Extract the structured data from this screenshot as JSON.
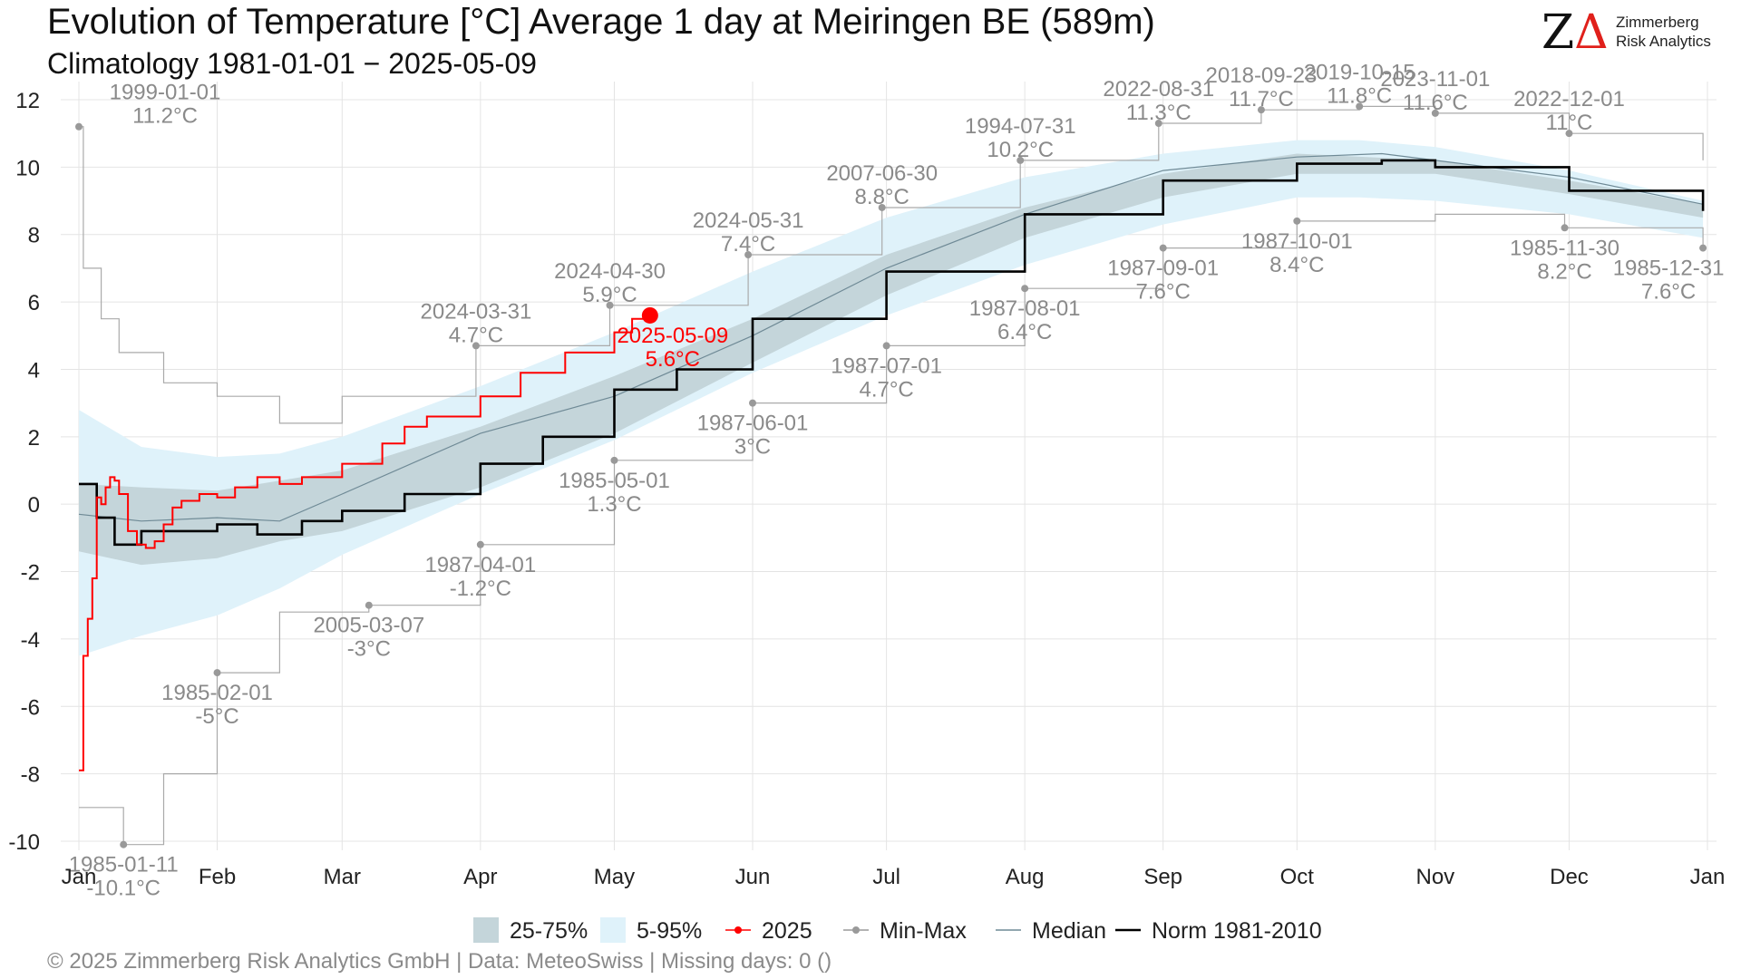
{
  "title": "Evolution of Temperature [°C] Average 1 day at Meiringen  BE (589m)",
  "subtitle": "Climatology 1981-01-01 − 2025-05-09",
  "logo": {
    "name": "Zimmerberg\nRisk Analytics",
    "icon": "z-delta-logo-icon"
  },
  "footer": "©  2025 Zimmerberg Risk Analytics GmbH | Data: MeteoSwiss | Missing days: 0 ()",
  "colors": {
    "iqr": "#c4d5da",
    "p5_95": "#dff2fa",
    "current": "#ff0000",
    "minmax": "#9a9a9a",
    "median": "#6f8a96",
    "norm": "#000000",
    "grid": "#e4e4e4"
  },
  "chart_data": {
    "type": "line",
    "xlabel": "",
    "ylabel": "",
    "ylim": [
      -10,
      12
    ],
    "yticks": [
      "-10",
      "-8",
      "-6",
      "-4",
      "-2",
      "0",
      "2",
      "4",
      "6",
      "8",
      "10",
      "12"
    ],
    "months": [
      "Jan",
      "Feb",
      "Mar",
      "Apr",
      "May",
      "Jun",
      "Jul",
      "Aug",
      "Sep",
      "Oct",
      "Nov",
      "Dec",
      "Jan"
    ],
    "grid": true,
    "legend_position": "bottom",
    "legend": [
      {
        "key": "iqr",
        "label": "25-75%",
        "kind": "box"
      },
      {
        "key": "p5_95",
        "label": "5-95%",
        "kind": "box"
      },
      {
        "key": "current",
        "label": "2025",
        "kind": "line-dot"
      },
      {
        "key": "minmax",
        "label": "Min-Max",
        "kind": "line-dot"
      },
      {
        "key": "median",
        "label": "Median",
        "kind": "line"
      },
      {
        "key": "norm",
        "label": "Norm 1981-2010",
        "kind": "line"
      }
    ],
    "series": [
      {
        "name": "Min-Max",
        "key": "max",
        "x": [
          "01-01",
          "01-02",
          "01-06",
          "01-10",
          "01-20",
          "02-01",
          "02-15",
          "03-01",
          "03-31",
          "04-30",
          "05-31",
          "06-30",
          "07-31",
          "08-31",
          "09-23",
          "10-15",
          "11-01",
          "12-01",
          "12-31"
        ],
        "y": [
          11.2,
          7.0,
          5.5,
          4.5,
          3.6,
          3.2,
          2.4,
          3.2,
          4.7,
          5.9,
          7.4,
          8.8,
          10.2,
          11.3,
          11.7,
          11.8,
          11.6,
          11.0,
          10.2
        ]
      },
      {
        "name": "Min-Max",
        "key": "min",
        "x": [
          "01-01",
          "01-05",
          "01-11",
          "01-20",
          "02-01",
          "02-15",
          "03-07",
          "04-01",
          "05-01",
          "06-01",
          "07-01",
          "08-01",
          "09-01",
          "10-01",
          "11-01",
          "11-30",
          "12-31"
        ],
        "y": [
          -9.0,
          -9.0,
          -10.1,
          -8.0,
          -5.0,
          -3.2,
          -3.0,
          -1.2,
          1.3,
          3.0,
          4.7,
          6.4,
          7.6,
          8.4,
          8.6,
          8.2,
          7.6
        ]
      },
      {
        "name": "5-95%",
        "key": "p95",
        "x": [
          "01-01",
          "01-15",
          "02-01",
          "02-15",
          "03-01",
          "04-01",
          "05-01",
          "06-01",
          "07-01",
          "08-01",
          "09-01",
          "10-01",
          "10-15",
          "11-01",
          "12-01",
          "12-31"
        ],
        "y": [
          2.8,
          1.7,
          1.4,
          1.5,
          2.0,
          3.5,
          5.1,
          6.9,
          8.5,
          9.7,
          10.4,
          10.8,
          10.8,
          10.6,
          9.9,
          9.0
        ]
      },
      {
        "name": "5-95%",
        "key": "p05",
        "x": [
          "01-01",
          "01-15",
          "02-01",
          "02-15",
          "03-01",
          "04-01",
          "05-01",
          "06-01",
          "07-01",
          "08-01",
          "09-01",
          "10-01",
          "10-15",
          "11-01",
          "12-01",
          "12-31"
        ],
        "y": [
          -4.5,
          -3.9,
          -3.3,
          -2.5,
          -1.5,
          0.3,
          1.9,
          3.9,
          5.6,
          7.1,
          8.3,
          9.1,
          9.1,
          9.0,
          8.6,
          7.9
        ]
      },
      {
        "name": "25-75%",
        "key": "p75",
        "x": [
          "01-01",
          "01-15",
          "02-01",
          "02-15",
          "03-01",
          "04-01",
          "05-01",
          "06-01",
          "07-01",
          "08-01",
          "09-01",
          "10-01",
          "11-01",
          "12-01",
          "12-31"
        ],
        "y": [
          0.6,
          0.5,
          0.4,
          0.7,
          1.0,
          2.3,
          3.8,
          5.5,
          7.4,
          8.8,
          9.8,
          10.4,
          10.2,
          9.6,
          8.9
        ]
      },
      {
        "name": "25-75%",
        "key": "p25",
        "x": [
          "01-01",
          "01-15",
          "02-01",
          "02-15",
          "03-01",
          "04-01",
          "05-01",
          "06-01",
          "07-01",
          "08-01",
          "09-01",
          "10-01",
          "11-01",
          "12-01",
          "12-31"
        ],
        "y": [
          -1.4,
          -1.8,
          -1.6,
          -1.1,
          -0.8,
          0.5,
          2.1,
          4.2,
          6.2,
          7.9,
          9.1,
          9.8,
          9.8,
          9.2,
          8.5
        ]
      },
      {
        "name": "Median",
        "key": "median",
        "x": [
          "01-01",
          "01-15",
          "02-01",
          "02-15",
          "03-01",
          "04-01",
          "05-01",
          "06-01",
          "07-01",
          "08-01",
          "09-01",
          "10-01",
          "10-20",
          "11-01",
          "12-01",
          "12-31"
        ],
        "y": [
          -0.3,
          -0.5,
          -0.4,
          -0.5,
          0.3,
          2.1,
          3.2,
          5.0,
          7.0,
          8.6,
          9.9,
          10.3,
          10.4,
          10.2,
          9.7,
          8.9
        ]
      },
      {
        "name": "Norm 1981-2010",
        "key": "norm",
        "x": [
          "01-01",
          "01-05",
          "01-09",
          "01-15",
          "02-01",
          "02-10",
          "02-20",
          "03-01",
          "03-15",
          "04-01",
          "04-15",
          "05-01",
          "05-15",
          "06-01",
          "07-01",
          "08-01",
          "09-01",
          "10-01",
          "10-20",
          "11-01",
          "12-01",
          "12-31"
        ],
        "y": [
          0.6,
          -0.4,
          -1.2,
          -0.8,
          -0.6,
          -0.9,
          -0.5,
          -0.2,
          0.3,
          1.2,
          2.0,
          3.4,
          4.0,
          5.5,
          6.9,
          8.6,
          9.6,
          10.1,
          10.2,
          10.0,
          9.3,
          8.7
        ]
      },
      {
        "name": "2025",
        "key": "current",
        "x": [
          "01-01",
          "01-02",
          "01-03",
          "01-04",
          "01-05",
          "01-06",
          "01-07",
          "01-08",
          "01-09",
          "01-10",
          "01-12",
          "01-14",
          "01-16",
          "01-18",
          "01-20",
          "01-22",
          "01-24",
          "01-28",
          "02-01",
          "02-05",
          "02-10",
          "02-15",
          "02-20",
          "03-01",
          "03-10",
          "03-15",
          "03-20",
          "04-01",
          "04-10",
          "04-20",
          "05-01",
          "05-05",
          "05-09"
        ],
        "y": [
          -7.9,
          -4.5,
          -3.4,
          -2.2,
          0.2,
          0.0,
          0.5,
          0.8,
          0.7,
          0.3,
          -0.8,
          -1.2,
          -1.3,
          -1.1,
          -0.6,
          -0.1,
          0.1,
          0.3,
          0.2,
          0.5,
          0.8,
          0.6,
          0.8,
          1.2,
          1.8,
          2.3,
          2.6,
          3.2,
          3.9,
          4.5,
          5.1,
          5.5,
          5.6
        ]
      }
    ],
    "annotations": [
      {
        "date": "1999-01-01",
        "value": "11.2°C",
        "x": "01-01",
        "y": 11.2,
        "kind": "max"
      },
      {
        "date": "2024-03-31",
        "value": "4.7°C",
        "x": "03-31",
        "y": 4.7,
        "kind": "max"
      },
      {
        "date": "2024-04-30",
        "value": "5.9°C",
        "x": "04-30",
        "y": 5.9,
        "kind": "max"
      },
      {
        "date": "2024-05-31",
        "value": "7.4°C",
        "x": "05-31",
        "y": 7.4,
        "kind": "max"
      },
      {
        "date": "2007-06-30",
        "value": "8.8°C",
        "x": "06-30",
        "y": 8.8,
        "kind": "max"
      },
      {
        "date": "1994-07-31",
        "value": "10.2°C",
        "x": "07-31",
        "y": 10.2,
        "kind": "max"
      },
      {
        "date": "2022-08-31",
        "value": "11.3°C",
        "x": "08-31",
        "y": 11.3,
        "kind": "max"
      },
      {
        "date": "2018-09-23",
        "value": "11.7°C",
        "x": "09-23",
        "y": 11.7,
        "kind": "max"
      },
      {
        "date": "2019-10-15",
        "value": "11.8°C",
        "x": "10-15",
        "y": 11.8,
        "kind": "max"
      },
      {
        "date": "2023-11-01",
        "value": "11.6°C",
        "x": "11-01",
        "y": 11.6,
        "kind": "max"
      },
      {
        "date": "2022-12-01",
        "value": "11°C",
        "x": "12-01",
        "y": 11.0,
        "kind": "max"
      },
      {
        "date": "1985-01-11",
        "value": "-10.1°C",
        "x": "01-11",
        "y": -10.1,
        "kind": "min"
      },
      {
        "date": "1985-02-01",
        "value": "-5°C",
        "x": "02-01",
        "y": -5.0,
        "kind": "min"
      },
      {
        "date": "2005-03-07",
        "value": "-3°C",
        "x": "03-07",
        "y": -3.0,
        "kind": "min"
      },
      {
        "date": "1987-04-01",
        "value": "-1.2°C",
        "x": "04-01",
        "y": -1.2,
        "kind": "min"
      },
      {
        "date": "1985-05-01",
        "value": "1.3°C",
        "x": "05-01",
        "y": 1.3,
        "kind": "min"
      },
      {
        "date": "1987-06-01",
        "value": "3°C",
        "x": "06-01",
        "y": 3.0,
        "kind": "min"
      },
      {
        "date": "1987-07-01",
        "value": "4.7°C",
        "x": "07-01",
        "y": 4.7,
        "kind": "min"
      },
      {
        "date": "1987-08-01",
        "value": "6.4°C",
        "x": "08-01",
        "y": 6.4,
        "kind": "min"
      },
      {
        "date": "1987-09-01",
        "value": "7.6°C",
        "x": "09-01",
        "y": 7.6,
        "kind": "min"
      },
      {
        "date": "1987-10-01",
        "value": "8.4°C",
        "x": "10-01",
        "y": 8.4,
        "kind": "min"
      },
      {
        "date": "1985-11-30",
        "value": "8.2°C",
        "x": "11-30",
        "y": 8.2,
        "kind": "min"
      },
      {
        "date": "1985-12-31",
        "value": "7.6°C",
        "x": "12-31",
        "y": 7.6,
        "kind": "min"
      },
      {
        "date": "2025-05-09",
        "value": "5.6°C",
        "x": "05-09",
        "y": 5.6,
        "kind": "current"
      }
    ]
  }
}
